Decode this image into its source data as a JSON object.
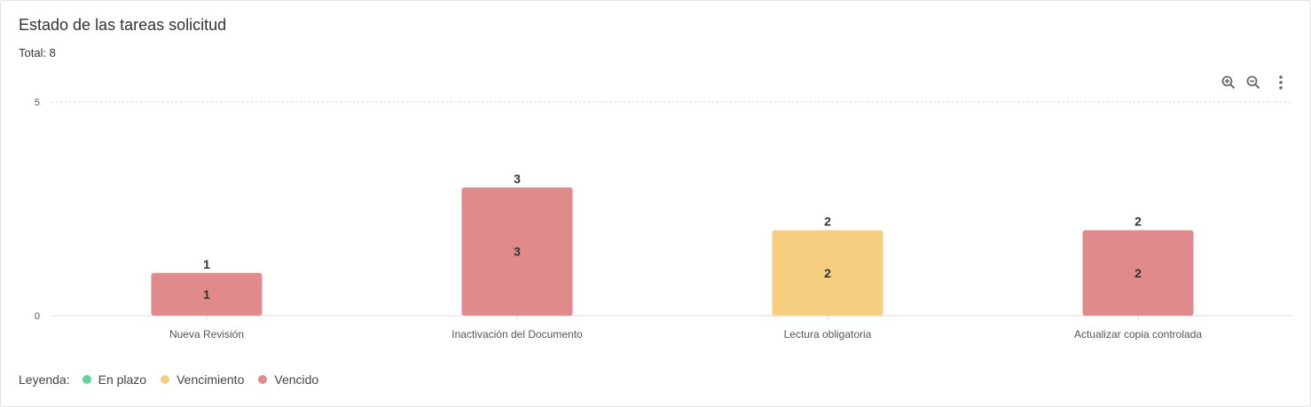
{
  "card": {
    "title": "Estado de las tareas solicitud",
    "total": "Total: 8"
  },
  "toolbar": {
    "icons": [
      "zoom-in-icon",
      "zoom-out-icon",
      "more-vert-icon"
    ]
  },
  "legend": {
    "title": "Leyenda:",
    "items": [
      {
        "label": "En plazo",
        "color": "#5fd49b"
      },
      {
        "label": "Vencimiento",
        "color": "#f5cf7f"
      },
      {
        "label": "Vencido",
        "color": "#e08a8c"
      }
    ]
  },
  "chart_data": {
    "type": "bar",
    "categories": [
      "Nueva Revisión",
      "Inactivación del Documento",
      "Lectura obligatoria",
      "Actualizar copia controlada"
    ],
    "values": [
      1,
      3,
      2,
      2
    ],
    "bar_colors": [
      "#e08a8c",
      "#e08a8c",
      "#f5cf7f",
      "#e08a8c"
    ],
    "yticks": [
      0,
      5
    ],
    "ylim": [
      0,
      5
    ],
    "grid": true,
    "data_labels": true
  }
}
